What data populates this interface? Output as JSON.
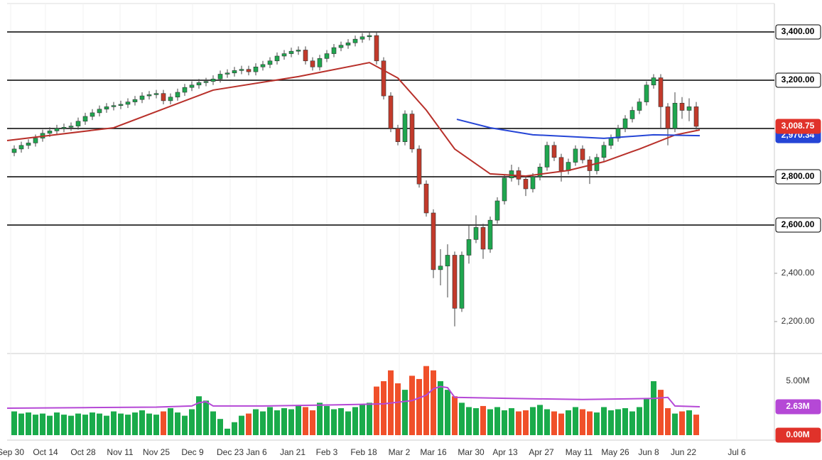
{
  "chart_data": {
    "type": "candlestick",
    "xlim": [
      -1,
      107
    ],
    "xticks": [
      {
        "value": -0.5,
        "label": "Sep 30"
      },
      {
        "value": 4.4,
        "label": "Oct 14"
      },
      {
        "value": 9.7,
        "label": "Oct 28"
      },
      {
        "value": 14.9,
        "label": "Nov 11"
      },
      {
        "value": 20,
        "label": "Nov 25"
      },
      {
        "value": 25.1,
        "label": "Dec 9"
      },
      {
        "value": 30.4,
        "label": "Dec 23"
      },
      {
        "value": 34.1,
        "label": "Jan 6"
      },
      {
        "value": 39.2,
        "label": "Jan 21"
      },
      {
        "value": 44,
        "label": "Feb 3"
      },
      {
        "value": 49.2,
        "label": "Feb 18"
      },
      {
        "value": 54.2,
        "label": "Mar 2"
      },
      {
        "value": 59,
        "label": "Mar 16"
      },
      {
        "value": 64.3,
        "label": "Mar 30"
      },
      {
        "value": 69.1,
        "label": "Apr 13"
      },
      {
        "value": 74.2,
        "label": "Apr 27"
      },
      {
        "value": 79.5,
        "label": "May 11"
      },
      {
        "value": 84.6,
        "label": "May 26"
      },
      {
        "value": 89.3,
        "label": "Jun 8"
      },
      {
        "value": 94.2,
        "label": "Jun 22"
      },
      {
        "value": 101.7,
        "label": "Jul 6"
      }
    ],
    "ylim": [
      2067.6,
      3517.6
    ],
    "yticks": [
      {
        "value": 2200,
        "label": "2,200.00"
      },
      {
        "value": 2400,
        "label": "2,400.00"
      },
      {
        "value": 2600,
        "label": "2,600.00"
      },
      {
        "value": 2800,
        "label": "2,800.00"
      },
      {
        "value": 3200,
        "label": "3,200.00"
      },
      {
        "value": 3400,
        "label": "3,400.00"
      }
    ],
    "levels": [
      2600,
      2800,
      3000,
      3200,
      3400
    ],
    "up_color": "#1fa64f",
    "down_color": "#c23a2b",
    "open": [
      2900,
      2915,
      2930,
      2940,
      2960,
      2980,
      2990,
      3000,
      3005,
      3010,
      3030,
      3050,
      3065,
      3080,
      3090,
      3095,
      3100,
      3110,
      3120,
      3135,
      3140,
      3145,
      3115,
      3130,
      3150,
      3170,
      3180,
      3190,
      3195,
      3205,
      3225,
      3230,
      3240,
      3245,
      3235,
      3255,
      3265,
      3280,
      3300,
      3310,
      3320,
      3325,
      3280,
      3255,
      3290,
      3310,
      3335,
      3345,
      3355,
      3370,
      3380,
      3385,
      3280,
      3135,
      3000,
      2945,
      3060,
      2915,
      2770,
      2650,
      2415,
      2430,
      2475,
      2255,
      2475,
      2540,
      2590,
      2500,
      2620,
      2700,
      2795,
      2825,
      2790,
      2750,
      2800,
      2840,
      2930,
      2880,
      2825,
      2860,
      2915,
      2870,
      2825,
      2880,
      2930,
      2960,
      3000,
      3040,
      3075,
      3110,
      3180,
      3210,
      3090,
      3000,
      3105,
      3075,
      3090
    ],
    "high": [
      2930,
      2945,
      2955,
      2975,
      2995,
      3005,
      3015,
      3020,
      3025,
      3045,
      3065,
      3080,
      3095,
      3105,
      3110,
      3115,
      3125,
      3135,
      3150,
      3155,
      3160,
      3160,
      3145,
      3165,
      3185,
      3195,
      3205,
      3210,
      3220,
      3240,
      3245,
      3255,
      3260,
      3260,
      3270,
      3280,
      3295,
      3315,
      3325,
      3335,
      3340,
      3340,
      3295,
      3305,
      3325,
      3350,
      3360,
      3370,
      3385,
      3395,
      3400,
      3400,
      3295,
      3150,
      3015,
      3075,
      3075,
      2930,
      2785,
      2665,
      2500,
      2520,
      2490,
      2490,
      2600,
      2640,
      2605,
      2635,
      2715,
      2810,
      2850,
      2840,
      2805,
      2815,
      2855,
      2945,
      2945,
      2895,
      2875,
      2930,
      2930,
      2885,
      2895,
      2945,
      2975,
      3015,
      3055,
      3090,
      3125,
      3195,
      3225,
      3225,
      3105,
      3150,
      3130,
      3125,
      3110
    ],
    "low": [
      2885,
      2900,
      2915,
      2925,
      2945,
      2965,
      2975,
      2985,
      2990,
      2995,
      3015,
      3035,
      3050,
      3065,
      3075,
      3080,
      3085,
      3095,
      3105,
      3120,
      3125,
      3100,
      3100,
      3115,
      3135,
      3155,
      3165,
      3175,
      3180,
      3190,
      3210,
      3215,
      3225,
      3220,
      3220,
      3240,
      3250,
      3265,
      3285,
      3295,
      3305,
      3265,
      3240,
      3240,
      3275,
      3295,
      3320,
      3330,
      3340,
      3355,
      3365,
      3265,
      3120,
      2985,
      2930,
      2930,
      2900,
      2755,
      2635,
      2380,
      2350,
      2300,
      2180,
      2240,
      2440,
      2525,
      2460,
      2485,
      2605,
      2685,
      2780,
      2765,
      2720,
      2735,
      2785,
      2825,
      2865,
      2780,
      2810,
      2845,
      2855,
      2770,
      2810,
      2865,
      2915,
      2945,
      2985,
      3025,
      3060,
      3095,
      3165,
      3000,
      2930,
      2985,
      3040,
      3030,
      2995
    ],
    "close": [
      2915,
      2930,
      2940,
      2960,
      2980,
      2990,
      3000,
      3005,
      3010,
      3030,
      3050,
      3065,
      3080,
      3090,
      3095,
      3100,
      3110,
      3120,
      3135,
      3140,
      3145,
      3115,
      3130,
      3150,
      3170,
      3180,
      3190,
      3195,
      3205,
      3225,
      3230,
      3240,
      3245,
      3235,
      3255,
      3265,
      3280,
      3300,
      3310,
      3320,
      3325,
      3280,
      3255,
      3290,
      3310,
      3335,
      3345,
      3355,
      3370,
      3380,
      3385,
      3280,
      3135,
      3000,
      2945,
      3060,
      2915,
      2770,
      2650,
      2415,
      2430,
      2475,
      2255,
      2475,
      2540,
      2590,
      2500,
      2620,
      2700,
      2795,
      2825,
      2790,
      2750,
      2800,
      2840,
      2930,
      2880,
      2825,
      2860,
      2915,
      2870,
      2825,
      2880,
      2930,
      2960,
      3000,
      3040,
      3075,
      3110,
      3180,
      3210,
      3090,
      3000,
      3105,
      3075,
      3090,
      3008.75
    ],
    "last_price": {
      "value": 3008.75,
      "label": "3,008.75"
    },
    "moving_averages": [
      {
        "color": "#b8302a",
        "x": [
          -1,
          14,
          28,
          40,
          50,
          54,
          58,
          62,
          67,
          72,
          78,
          83,
          88,
          93,
          96.5
        ],
        "values": [
          2950,
          3003,
          3159,
          3215,
          3273,
          3209,
          3076,
          2915,
          2812,
          2803,
          2826,
          2862,
          2915,
          2973,
          2994
        ]
      },
      {
        "color": "#2545d6",
        "x": [
          62.3,
          67,
          73,
          83,
          90,
          96.5
        ],
        "values": [
          3038,
          3003,
          2974,
          2959,
          2974,
          2970.34
        ],
        "last_label": {
          "value": 2970.34,
          "label": "2,970.34"
        }
      }
    ],
    "volume": {
      "ylim": [
        0,
        7.43
      ],
      "yticks": [
        {
          "value": 5,
          "label": "5.00M"
        }
      ],
      "zero": {
        "value": 0,
        "label": "0.00M"
      },
      "up_color": "#1aab4b",
      "down_color": "#f0502a",
      "values": [
        2.2,
        2.0,
        2.1,
        1.9,
        2.0,
        1.8,
        2.1,
        1.9,
        1.8,
        2.0,
        1.9,
        2.1,
        2.0,
        1.8,
        2.2,
        2.0,
        1.9,
        2.1,
        2.3,
        2.0,
        1.9,
        2.2,
        2.5,
        2.1,
        1.8,
        2.4,
        3.6,
        3.2,
        2.2,
        1.5,
        0.6,
        1.2,
        1.8,
        2.0,
        2.4,
        2.2,
        2.6,
        2.3,
        2.5,
        2.4,
        2.8,
        2.6,
        2.3,
        3.0,
        2.7,
        2.4,
        2.5,
        2.2,
        2.6,
        2.8,
        3.0,
        4.5,
        5.0,
        6.0,
        4.8,
        4.2,
        5.5,
        5.2,
        6.4,
        6.0,
        5.0,
        4.2,
        3.6,
        3.0,
        2.6,
        2.5,
        2.7,
        2.4,
        2.6,
        2.3,
        2.5,
        2.2,
        2.3,
        2.6,
        2.8,
        2.4,
        2.2,
        2.0,
        2.3,
        2.6,
        2.4,
        2.2,
        2.1,
        2.6,
        2.3,
        2.4,
        2.5,
        2.2,
        2.6,
        3.4,
        5.0,
        4.2,
        2.5,
        2.0,
        2.2,
        2.3,
        1.9
      ],
      "average": {
        "color": "#b548d6",
        "x": [
          -1,
          10,
          20,
          25,
          26,
          27,
          28,
          35,
          45,
          52,
          56,
          58,
          59,
          60,
          61,
          62,
          70,
          80,
          90,
          92,
          93,
          96.5
        ],
        "values": [
          2.5,
          2.55,
          2.6,
          2.7,
          3.0,
          3.1,
          2.7,
          2.7,
          2.8,
          2.9,
          3.2,
          3.7,
          4.3,
          4.5,
          4.4,
          3.5,
          3.4,
          3.3,
          3.4,
          3.5,
          2.7,
          2.63
        ],
        "last_label": {
          "value": 2.63,
          "label": "2.63M"
        }
      }
    }
  }
}
